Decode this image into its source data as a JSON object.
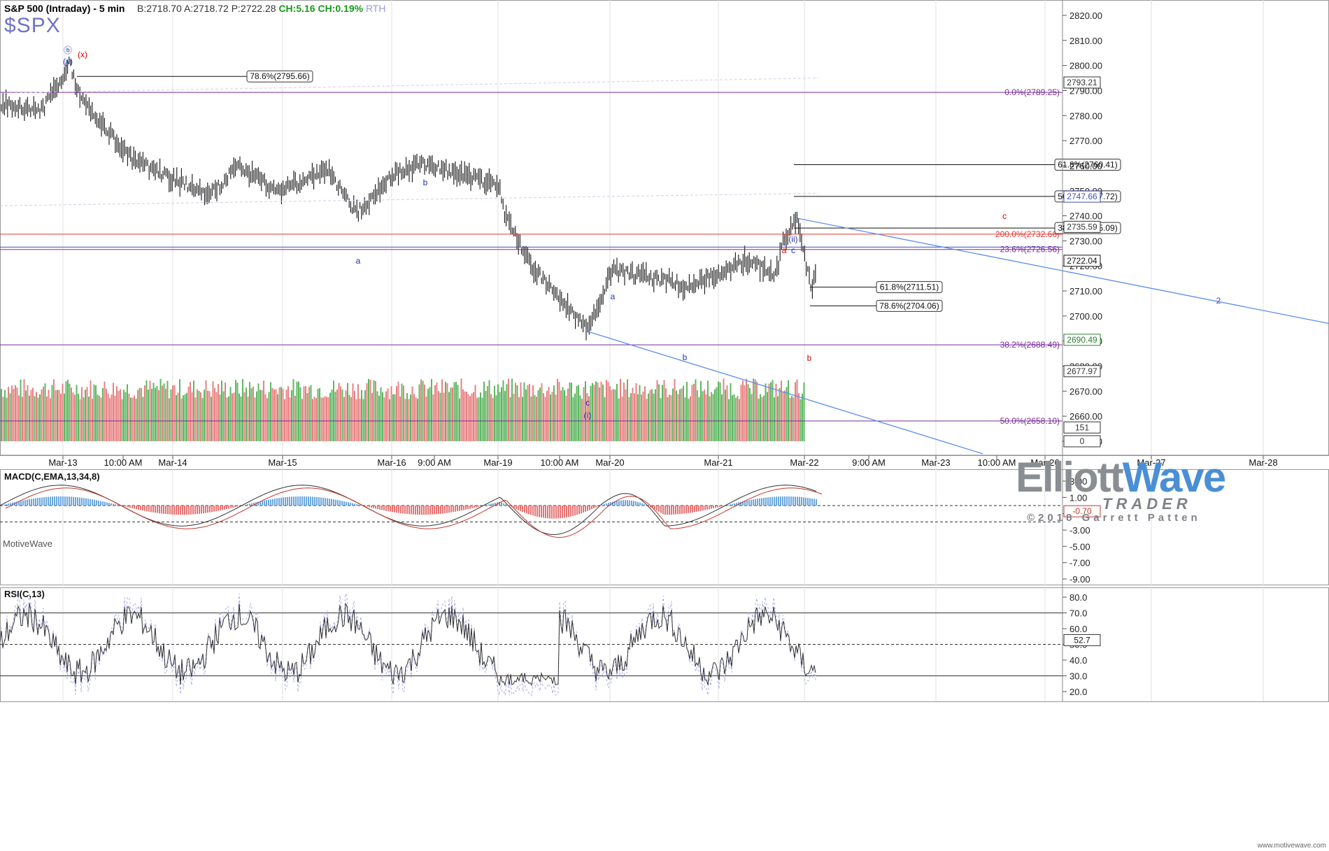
{
  "header": {
    "title": "S&P 500 (Intraday) - 5 min",
    "symbol": "$SPX",
    "bid": "B:2718.70",
    "ask": "A:2718.72",
    "price": "P:2722.28",
    "change": "CH:5.16",
    "change_pct": "CH:0.19%",
    "session": "RTH"
  },
  "branding": {
    "logo_part1": "Elliott",
    "logo_part2": "Wave",
    "logo_sub": "TRADER",
    "copyright": "©2018 Garrett Patten",
    "maker": "MotiveWave",
    "footer": "www.motivewave.com"
  },
  "colors": {
    "candle": "#111111",
    "volume_up": "#4caf50",
    "volume_down": "#e57373",
    "fib_purple": "#7a2a9a",
    "red_line": "#e53935",
    "blue_line": "#3f51b5",
    "trend_blue": "#5b8def",
    "label_blue": "#2233aa",
    "label_red": "#e00000",
    "macd_blue": "#6aa7dd",
    "macd_red": "#e57373"
  },
  "chart_data": [
    {
      "type": "line",
      "title": "S&P 500 (Intraday) - 5 min",
      "y_ticks": [
        2650,
        2660,
        2670,
        2680,
        2690,
        2700,
        2710,
        2720,
        2730,
        2740,
        2750,
        2760,
        2770,
        2780,
        2790,
        2800,
        2810,
        2820
      ],
      "y_tick_labels": [
        "2650.00",
        "2660.00",
        "2670.00",
        "2680.00",
        "2690.00",
        "2700.00",
        "2710.00",
        "2720.00",
        "2730.00",
        "2740.00",
        "2750.00",
        "2760.00",
        "2770.00",
        "2780.00",
        "2790.00",
        "2800.00",
        "2810.00",
        "2820.00"
      ],
      "ylim": [
        2645,
        2825
      ],
      "x_labels": [
        "Mar-13",
        "10:00 AM",
        "Mar-14",
        "Mar-15",
        "Mar-16",
        "9:00 AM",
        "Mar-19",
        "10:00 AM",
        "Mar-20",
        "Mar-21",
        "Mar-22",
        "9:00 AM",
        "Mar-23",
        "10:00 AM",
        "Mar-26",
        "Mar-27",
        "Mar-28"
      ],
      "price_path": [
        [
          "Mar-13 open",
          2785
        ],
        [
          "Mar-13 mid",
          2782
        ],
        [
          "Mar-13 high",
          2801
        ],
        [
          "Mar-13 late",
          2790
        ],
        [
          "Mar-14 open",
          2775
        ],
        [
          "Mar-14 mid",
          2762
        ],
        [
          "Mar-14 low",
          2748
        ],
        [
          "Mar-15 open",
          2760
        ],
        [
          "Mar-15 mid",
          2750
        ],
        [
          "Mar-15 late",
          2758
        ],
        [
          "Mar-16 low",
          2741
        ],
        [
          "Mar-16 mid",
          2756
        ],
        [
          "Mar-16 b",
          2761
        ],
        [
          "Mar-16 close",
          2752
        ],
        [
          "Mar-19 open",
          2741
        ],
        [
          "Mar-19 mid",
          2720
        ],
        [
          "Mar-19 low",
          2694
        ],
        [
          "Mar-20 open",
          2718
        ],
        [
          "Mar-20 mid",
          2714
        ],
        [
          "Mar-20 b",
          2711
        ],
        [
          "Mar-21 open",
          2722
        ],
        [
          "Mar-21 mid",
          2717
        ],
        [
          "Mar-21 late",
          2730
        ],
        [
          "Mar-21 c",
          2739
        ],
        [
          "Mar-21 b",
          2710
        ],
        [
          "Mar-21 close",
          2722
        ]
      ],
      "last_price": "2722.04",
      "axis_badges": [
        {
          "value": "2793.21",
          "color": "#333333"
        },
        {
          "value": "2747.66",
          "color": "#3f51b5"
        },
        {
          "value": "2735.59",
          "color": "#333333"
        },
        {
          "value": "2722.04",
          "color": "#111111"
        },
        {
          "value": "2690.49",
          "color": "#2e7d32"
        },
        {
          "value": "2677.97",
          "color": "#333333"
        },
        {
          "value": "151",
          "color": "#333333"
        },
        {
          "value": "0",
          "color": "#333333"
        }
      ],
      "fib_lines": [
        {
          "label": "0.0%(2789.25)",
          "value": 2789.25,
          "color": "#7a2a9a"
        },
        {
          "label": "200.0%(2732.66)",
          "value": 2732.66,
          "color": "#e53935"
        },
        {
          "label": "23.6%(2726.56)",
          "value": 2726.56,
          "color": "#7a2a9a"
        },
        {
          "label": "38.2%(2688.49)",
          "value": 2688.49,
          "color": "#7a2a9a"
        },
        {
          "label": "50.0%(2658.10)",
          "value": 2658.1,
          "color": "#7a2a9a"
        }
      ],
      "fib_boxes": [
        {
          "label": "78.6%(2795.66)",
          "value": 2795.66
        },
        {
          "label": "61.8%(2760.41)",
          "value": 2760.41
        },
        {
          "label": "50.0%(2747.72)",
          "value": 2747.72
        },
        {
          "label": "38.2%(2735.09)",
          "value": 2735.09
        },
        {
          "label": "61.8%(2711.51)",
          "value": 2711.51
        },
        {
          "label": "78.6%(2704.06)",
          "value": 2704.06
        }
      ],
      "wave_labels": [
        {
          "text": "ⓑ",
          "color": "#2233aa"
        },
        {
          "text": "(y)",
          "color": "#2233aa"
        },
        {
          "text": "(x)",
          "color": "#e00000"
        },
        {
          "text": "a",
          "color": "#2233aa"
        },
        {
          "text": "b",
          "color": "#2233aa"
        },
        {
          "text": "a",
          "color": "#2233aa"
        },
        {
          "text": "b",
          "color": "#2233aa"
        },
        {
          "text": "c",
          "color": "#2233aa"
        },
        {
          "text": "(i)",
          "color": "#2233aa"
        },
        {
          "text": "a",
          "color": "#e00000"
        },
        {
          "text": "c",
          "color": "#2233aa"
        },
        {
          "text": "(ii)",
          "color": "#2233aa"
        },
        {
          "text": "b",
          "color": "#e00000"
        },
        {
          "text": "c",
          "color": "#e00000"
        },
        {
          "text": "2",
          "color": "#3f51b5"
        }
      ]
    },
    {
      "type": "line",
      "title": "MACD(C,EMA,13,34,8)",
      "y_ticks": [
        3,
        1,
        -1,
        -3,
        -5,
        -7,
        -9
      ],
      "y_tick_labels": [
        "3.00",
        "1.00",
        "-1.00",
        "-3.00",
        "-5.00",
        "-7.00",
        "-9.00"
      ],
      "ylim": [
        -9.8,
        4.2
      ],
      "last_value": "-0.70",
      "reference_lines": [
        0,
        -2
      ]
    },
    {
      "type": "line",
      "title": "RSI(C,13)",
      "y_ticks": [
        80,
        70,
        60,
        50,
        40,
        30,
        20
      ],
      "y_tick_labels": [
        "80.0",
        "70.0",
        "60.0",
        "50.0",
        "40.0",
        "30.0",
        "20.0"
      ],
      "ylim": [
        18,
        85
      ],
      "last_value": "52.7",
      "reference_lines": [
        70,
        50,
        30
      ]
    }
  ]
}
